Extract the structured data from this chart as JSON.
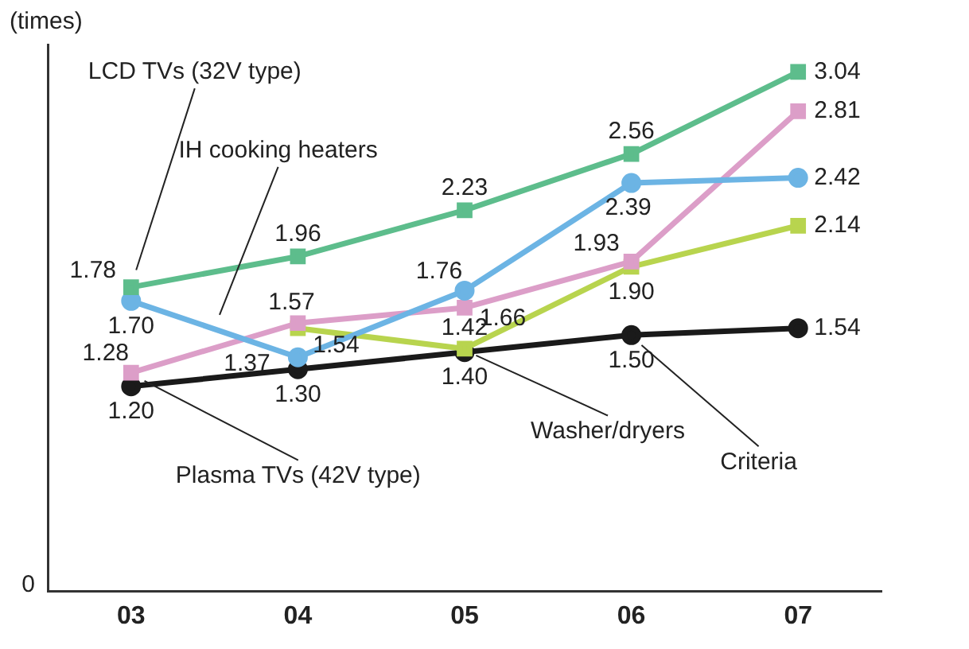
{
  "chart_data": {
    "type": "line",
    "ylabel": "(times)",
    "categories": [
      "03",
      "04",
      "05",
      "06",
      "07"
    ],
    "series": [
      {
        "name": "LCD TVs (32V type)",
        "color": "#5dbd8c",
        "marker": "square",
        "values": [
          1.78,
          1.96,
          2.23,
          2.56,
          3.04
        ],
        "value_labels": [
          "1.78",
          "1.96",
          "2.23",
          "2.56",
          "3.04"
        ]
      },
      {
        "name": "IH cooking heaters",
        "color": "#6cb4e4",
        "marker": "circle",
        "values": [
          1.7,
          1.37,
          1.76,
          2.39,
          2.42
        ],
        "value_labels": [
          "1.70",
          "1.37",
          "1.76",
          "2.39",
          "2.42"
        ]
      },
      {
        "name": "Plasma TVs (42V type)",
        "color": "#dc9ec8",
        "marker": "square",
        "values": [
          1.28,
          1.57,
          1.66,
          1.93,
          2.81
        ],
        "value_labels": [
          "1.28",
          "1.57",
          "1.66",
          "1.93",
          "2.81"
        ]
      },
      {
        "name": "Washer/dryers",
        "color": "#b8d44e",
        "marker": "square",
        "values": [
          null,
          1.54,
          1.42,
          1.9,
          2.14
        ],
        "value_labels": [
          null,
          "1.54",
          "1.42",
          "1.90",
          "2.14"
        ]
      },
      {
        "name": "Criteria",
        "color": "#1a1a1a",
        "marker": "circle",
        "values": [
          1.2,
          1.3,
          1.4,
          1.5,
          1.54
        ],
        "value_labels": [
          "1.20",
          "1.30",
          "1.40",
          "1.50",
          "1.54"
        ]
      }
    ],
    "ylim": [
      0,
      3.2
    ],
    "annotations": [
      "0"
    ],
    "grid": false,
    "legend": false
  }
}
